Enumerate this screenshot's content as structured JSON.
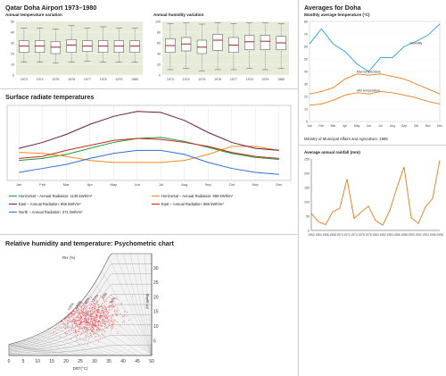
{
  "header": {
    "airport_title": "Qatar Doha Airport 1973–1980",
    "averages_title": "Averages for Doha"
  },
  "boxplots": {
    "temperature": {
      "title": "Annual temperature variation",
      "years": [
        "1973",
        "1974",
        "1975",
        "1976",
        "1977",
        "1978",
        "1979",
        "1980"
      ],
      "y_ticks": [
        "0",
        "10",
        "20",
        "30",
        "40",
        "50"
      ],
      "ylim": [
        0,
        50
      ]
    },
    "humidity": {
      "title": "Annual humidity variation",
      "years": [
        "1973",
        "1974",
        "1975",
        "1976",
        "1977",
        "1978",
        "1979",
        "1980"
      ],
      "y_ticks": [
        "0",
        "20",
        "40",
        "60",
        "80",
        "100"
      ],
      "ylim": [
        0,
        100
      ]
    }
  },
  "radiation": {
    "title": "Surface radiate temperatures",
    "legend": [
      {
        "label": "Horizontal – Annual Radiation: 1139 kWh/m²",
        "color": "#1a9a3a"
      },
      {
        "label": "Horizontal – Annual Radiation: 969 kWh/m²",
        "color": "#f08a1c"
      },
      {
        "label": "East – Annual Radiation: 866 kWh/m²",
        "color": "#6b1a4a"
      },
      {
        "label": "East – Annual Radiation: 866 kWh/m²",
        "color": "#c9281c"
      },
      {
        "label": "North – Annual Radiation: 371 kWh/m²",
        "color": "#2f6fd6"
      }
    ]
  },
  "psychro": {
    "title": "Relative humidity and temperature: Psychometric chart",
    "rh_label": "RH (%)",
    "ah_label": "AH (g/kg)",
    "dbt_label": "DBT(°C)",
    "x_ticks": [
      "0",
      "5",
      "10",
      "15",
      "20",
      "25",
      "30",
      "35",
      "40",
      "45",
      "50"
    ],
    "ah_ticks": [
      "5",
      "10",
      "15",
      "20",
      "25",
      "30"
    ],
    "rh_ticks": [
      "100%",
      "90%",
      "80%",
      "70%",
      "60%",
      "50%"
    ]
  },
  "monthly_temp": {
    "title": "Monthly average temperature (°C)",
    "source": "Ministry of Municipal Affairs and Agriculture, 1995"
  },
  "rainfall": {
    "title": "Average annual rainfall (mm)"
  },
  "chart_data": [
    {
      "type": "box",
      "title": "Annual temperature variation",
      "categories": [
        "1973",
        "1974",
        "1975",
        "1976",
        "1977",
        "1978",
        "1979",
        "1980"
      ],
      "q1": [
        21,
        21,
        20,
        21,
        22,
        21,
        21,
        21
      ],
      "median": [
        27,
        27,
        26,
        28,
        27,
        27,
        27,
        27
      ],
      "q3": [
        32,
        32,
        31,
        33,
        32,
        32,
        32,
        32
      ],
      "whisker_low": [
        12,
        12,
        11,
        12,
        13,
        12,
        12,
        12
      ],
      "whisker_high": [
        44,
        44,
        43,
        46,
        44,
        45,
        44,
        44
      ],
      "ylim": [
        0,
        50
      ]
    },
    {
      "type": "box",
      "title": "Annual humidity variation",
      "categories": [
        "1973",
        "1974",
        "1975",
        "1976",
        "1977",
        "1978",
        "1979",
        "1980"
      ],
      "q1": [
        42,
        45,
        40,
        46,
        42,
        47,
        47,
        47
      ],
      "median": [
        55,
        58,
        52,
        65,
        56,
        62,
        63,
        60
      ],
      "q3": [
        68,
        70,
        65,
        76,
        70,
        74,
        74,
        72
      ],
      "whisker_low": [
        10,
        12,
        8,
        10,
        10,
        12,
        10,
        12
      ],
      "whisker_high": [
        96,
        97,
        95,
        98,
        96,
        97,
        97,
        96
      ],
      "ylim": [
        0,
        100
      ]
    },
    {
      "type": "line",
      "title": "Surface radiate temperatures",
      "categories": [
        "Jan",
        "Feb",
        "Mar",
        "Apr",
        "May",
        "Jun",
        "Jul",
        "Aug",
        "Sep",
        "Oct",
        "Nov",
        "Dec"
      ],
      "series": [
        {
          "name": "Horizontal – Annual Radiation: 1139 kWh/m²",
          "color": "#1a9a3a",
          "values": [
            30,
            32,
            36,
            42,
            48,
            52,
            53,
            49,
            43,
            37,
            33,
            31
          ]
        },
        {
          "name": "Horizontal – Annual Radiation: 969 kWh/m²",
          "color": "#f08a1c",
          "values": [
            38,
            37,
            34,
            30,
            28,
            28,
            28,
            30,
            36,
            44,
            44,
            40
          ]
        },
        {
          "name": "East – Annual Radiation: 866 kWh/m²",
          "color": "#6b1a4a",
          "values": [
            42,
            48,
            56,
            66,
            74,
            79,
            78,
            70,
            58,
            48,
            42,
            40
          ]
        },
        {
          "name": "East – Annual Radiation: 866 kWh/m²",
          "color": "#c9281c",
          "values": [
            32,
            34,
            40,
            45,
            50,
            52,
            51,
            48,
            44,
            38,
            34,
            32
          ]
        },
        {
          "name": "North – Annual Radiation: 371 kWh/m²",
          "color": "#2f6fd6",
          "values": [
            18,
            22,
            26,
            32,
            37,
            40,
            40,
            36,
            28,
            22,
            18,
            16
          ]
        }
      ]
    },
    {
      "type": "scatter",
      "title": "Relative humidity and temperature: Psychometric chart",
      "xlabel": "DBT(°C)",
      "ylabel": "AH (g/kg)",
      "xlim": [
        0,
        50
      ],
      "ylim": [
        0,
        35
      ],
      "cluster": {
        "x_center": 29,
        "y_center": 13,
        "x_spread": 9,
        "y_spread": 5,
        "points": 900
      }
    },
    {
      "type": "line",
      "title": "Monthly average temperature (°C)",
      "categories": [
        "Jan",
        "Feb",
        "Mar",
        "Apr",
        "May",
        "Jun",
        "Jul",
        "Aug",
        "Sep",
        "Oct",
        "Nov",
        "Dec"
      ],
      "ylim": [
        0,
        80
      ],
      "y_ticks": [
        0,
        10,
        20,
        30,
        40,
        50,
        60,
        70,
        80
      ],
      "series": [
        {
          "name": "Humidity",
          "color": "#2a9fc9",
          "values": [
            62,
            74,
            62,
            56,
            46,
            40,
            51,
            51,
            60,
            64,
            69,
            78
          ]
        },
        {
          "name": "Max temperature",
          "color": "#ee7d1e",
          "values": [
            22,
            24,
            27,
            34,
            38,
            37,
            38,
            36,
            34,
            30,
            26,
            22
          ]
        },
        {
          "name": "Min temperature",
          "color": "#ee7d1e",
          "values": [
            13,
            14,
            17,
            21,
            23,
            22,
            24,
            23,
            21,
            19,
            16,
            14
          ]
        }
      ]
    },
    {
      "type": "line",
      "title": "Average annual rainfall (mm)",
      "categories": [
        "1962",
        "1964",
        "1966",
        "1968",
        "1970",
        "1972",
        "1974",
        "1976",
        "1978",
        "1980",
        "1982",
        "1984",
        "1986",
        "1988",
        "1990",
        "1992",
        "1994",
        "1996",
        "1998"
      ],
      "ylim": [
        0,
        250
      ],
      "y_ticks": [
        0,
        50,
        100,
        150,
        200,
        250
      ],
      "values": [
        60,
        30,
        20,
        65,
        78,
        180,
        42,
        65,
        85,
        35,
        18,
        70,
        150,
        222,
        45,
        24,
        82,
        112,
        245
      ]
    }
  ]
}
